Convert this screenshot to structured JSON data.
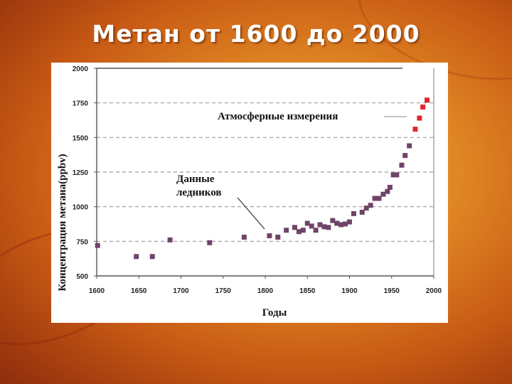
{
  "slide": {
    "title": "Метан от 1600 до 2000"
  },
  "chart_data": {
    "type": "scatter",
    "xlabel": "Годы",
    "ylabel": "Концентрация метана(ppbv)",
    "xlim": [
      1600,
      2000
    ],
    "ylim": [
      500,
      2000
    ],
    "xticks": [
      1600,
      1650,
      1700,
      1750,
      1800,
      1850,
      1900,
      1950,
      2000
    ],
    "yticks": [
      500,
      750,
      1000,
      1250,
      1500,
      1750,
      2000
    ],
    "grid": "dashed horizontal",
    "annotations": [
      {
        "text": "Атмосферные измерения",
        "target": "atmospheric"
      },
      {
        "text": "Данные ледников",
        "lines": [
          "Данные",
          "ледников"
        ],
        "target": "ice"
      }
    ],
    "series": [
      {
        "key": "ice",
        "color": "#6e4468",
        "points": [
          [
            1601,
            720
          ],
          [
            1647,
            640
          ],
          [
            1666,
            640
          ],
          [
            1687,
            760
          ],
          [
            1734,
            740
          ],
          [
            1775,
            780
          ],
          [
            1805,
            790
          ],
          [
            1815,
            780
          ],
          [
            1825,
            830
          ],
          [
            1835,
            850
          ],
          [
            1840,
            820
          ],
          [
            1845,
            830
          ],
          [
            1850,
            880
          ],
          [
            1855,
            860
          ],
          [
            1860,
            830
          ],
          [
            1865,
            870
          ],
          [
            1870,
            855
          ],
          [
            1875,
            850
          ],
          [
            1880,
            900
          ],
          [
            1885,
            880
          ],
          [
            1890,
            870
          ],
          [
            1895,
            875
          ],
          [
            1900,
            890
          ],
          [
            1905,
            950
          ],
          [
            1915,
            960
          ],
          [
            1920,
            990
          ],
          [
            1925,
            1010
          ],
          [
            1930,
            1060
          ],
          [
            1935,
            1060
          ],
          [
            1940,
            1090
          ],
          [
            1945,
            1110
          ],
          [
            1948,
            1140
          ],
          [
            1952,
            1230
          ],
          [
            1956,
            1230
          ],
          [
            1962,
            1300
          ],
          [
            1966,
            1370
          ],
          [
            1971,
            1440
          ]
        ]
      },
      {
        "key": "atmospheric",
        "color": "#e0262a",
        "points": [
          [
            1978,
            1560
          ],
          [
            1983,
            1640
          ],
          [
            1987,
            1720
          ],
          [
            1992,
            1770
          ]
        ]
      }
    ]
  }
}
